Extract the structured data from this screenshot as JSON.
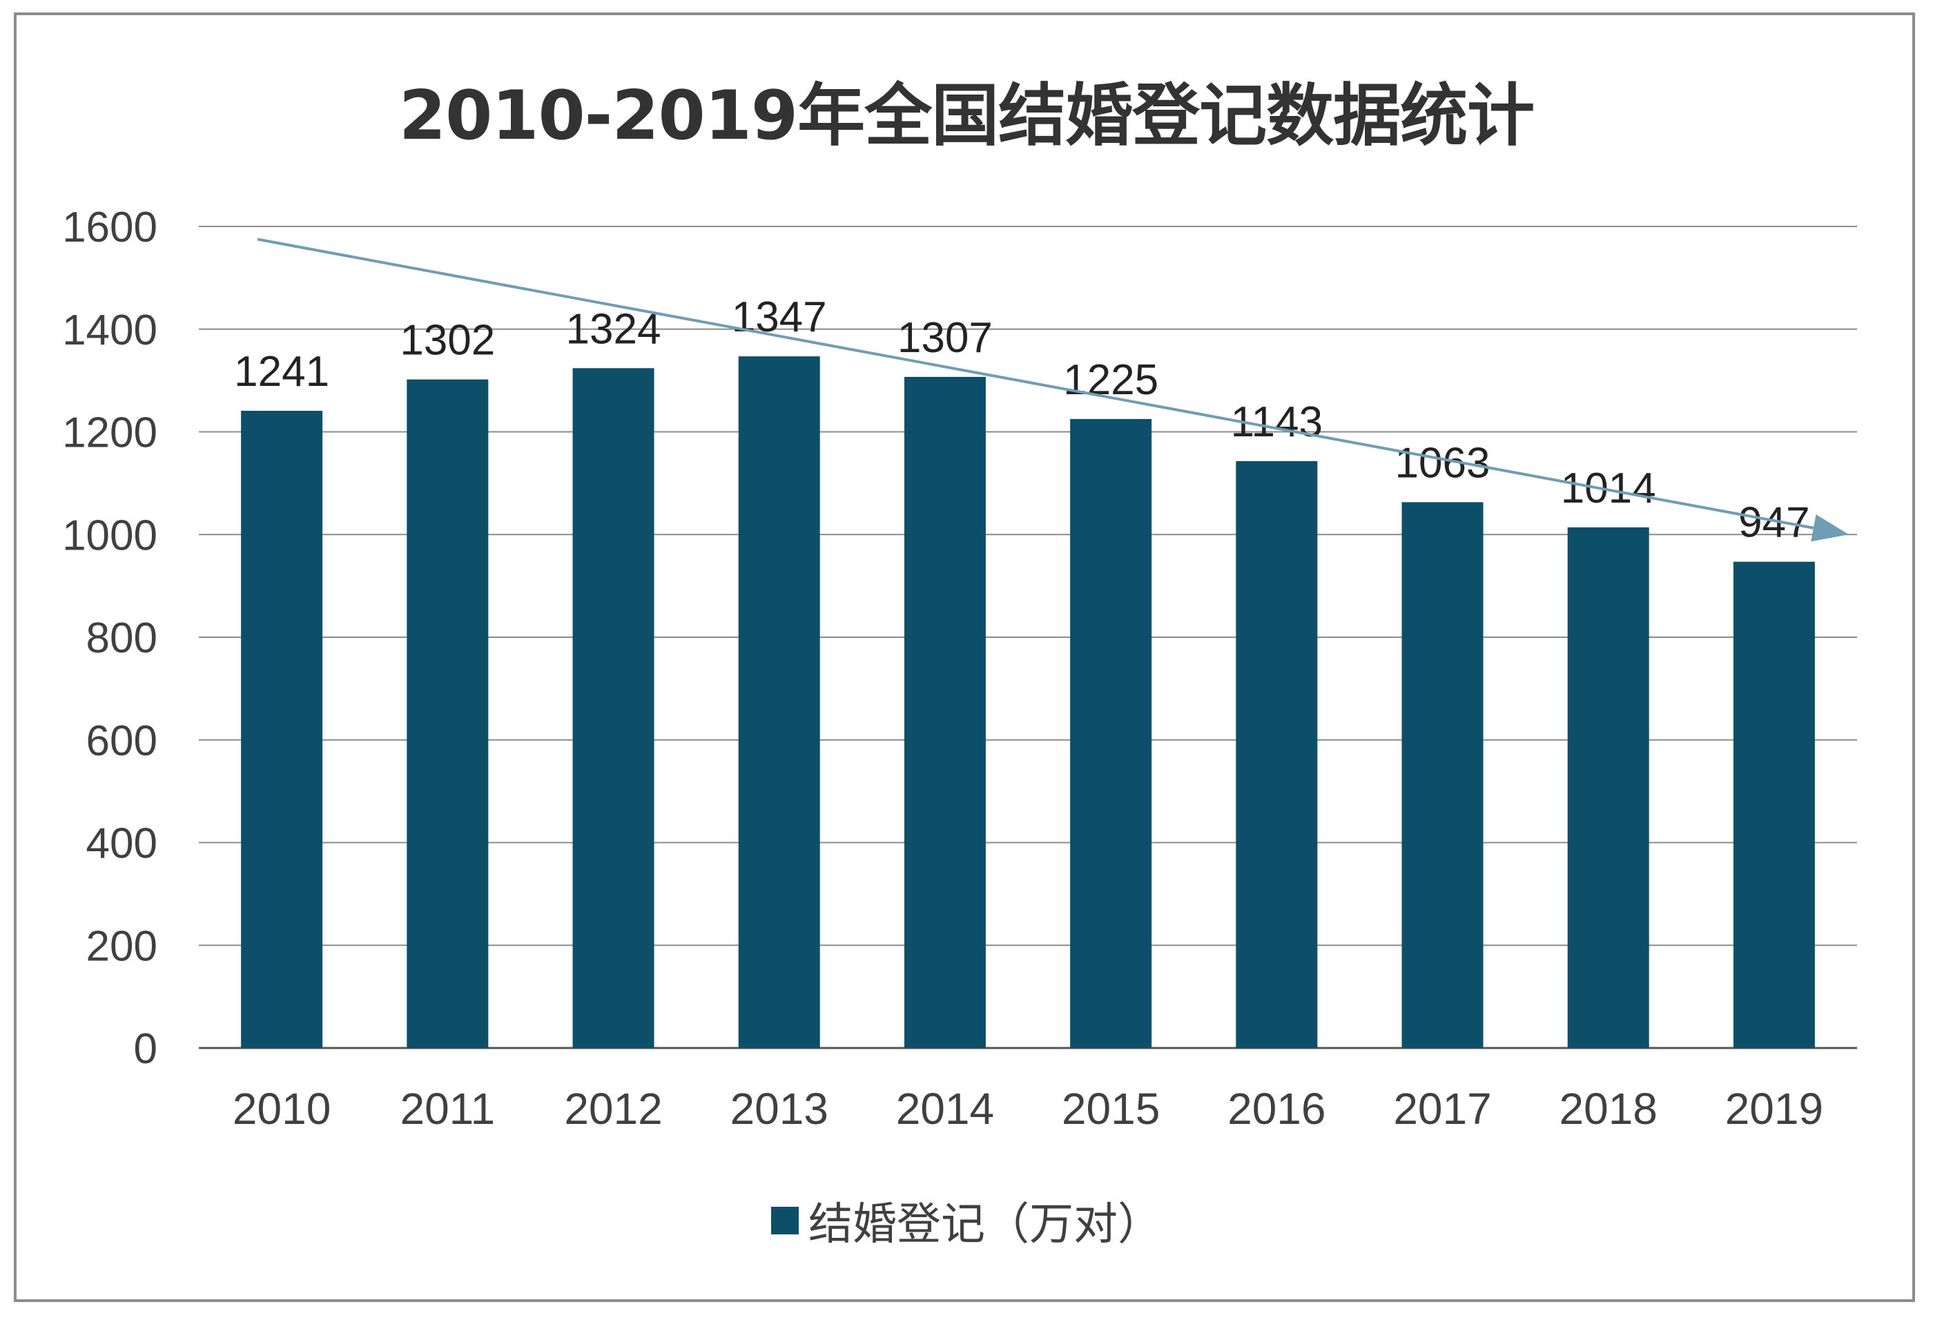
{
  "chart_data": {
    "type": "bar",
    "title": "2010-2019年全国结婚登记数据统计",
    "categories": [
      "2010",
      "2011",
      "2012",
      "2013",
      "2014",
      "2015",
      "2016",
      "2017",
      "2018",
      "2019"
    ],
    "series": [
      {
        "name": "结婚登记（万对）",
        "values": [
          1241,
          1302,
          1324,
          1347,
          1307,
          1225,
          1143,
          1063,
          1014,
          947
        ]
      }
    ],
    "ylim": [
      0,
      1600
    ],
    "yticks": [
      0,
      200,
      400,
      600,
      800,
      1000,
      1200,
      1400,
      1600
    ],
    "grid": true,
    "legend_position": "bottom",
    "trend_arrow": {
      "from": 1575,
      "to": 1000,
      "direction": "down"
    },
    "colors": {
      "bar": "#0d4f68",
      "arrow": "#6f9db3",
      "grid": "#8c8c8c",
      "text": "#404040"
    }
  }
}
